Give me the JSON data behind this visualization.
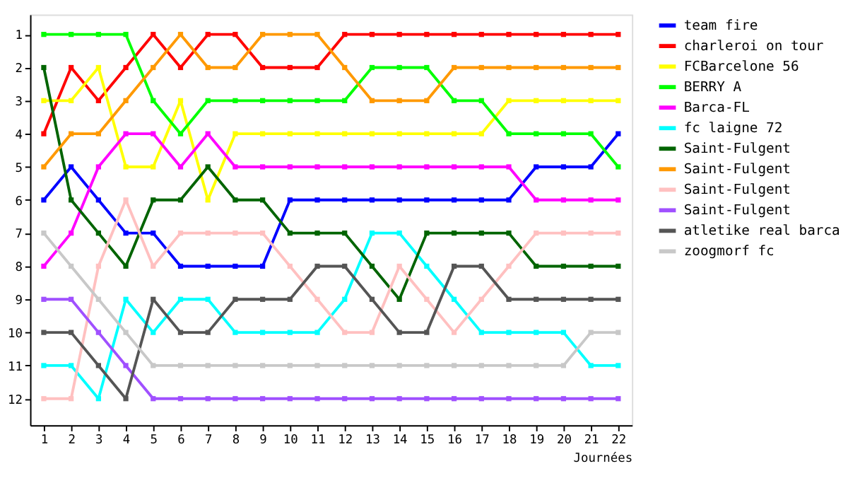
{
  "chart_data": {
    "type": "line",
    "xlabel": "Journées",
    "x": [
      1,
      2,
      3,
      4,
      5,
      6,
      7,
      8,
      9,
      10,
      11,
      12,
      13,
      14,
      15,
      16,
      17,
      18,
      19,
      20,
      21,
      22
    ],
    "xlim": [
      0.5,
      22.5
    ],
    "xticks": [
      1,
      2,
      3,
      4,
      5,
      6,
      7,
      8,
      9,
      10,
      11,
      12,
      13,
      14,
      15,
      16,
      17,
      18,
      19,
      20,
      21,
      22
    ],
    "ylim": [
      12.8,
      0.4
    ],
    "yticks": [
      1,
      2,
      3,
      4,
      5,
      6,
      7,
      8,
      9,
      10,
      11,
      12
    ],
    "grid": false,
    "legend": "right",
    "marker": "square",
    "line_style": "solid",
    "series": [
      {
        "name": "team fire",
        "color": "#0000ff",
        "values": [
          6,
          5,
          6,
          7,
          7,
          8,
          8,
          8,
          8,
          6,
          6,
          6,
          6,
          6,
          6,
          6,
          6,
          6,
          5,
          5,
          5,
          4
        ]
      },
      {
        "name": "charleroi on tour",
        "color": "#ff0000",
        "values": [
          4,
          2,
          3,
          2,
          1,
          2,
          1,
          1,
          2,
          2,
          2,
          1,
          1,
          1,
          1,
          1,
          1,
          1,
          1,
          1,
          1,
          1
        ]
      },
      {
        "name": "FCBarcelone 56",
        "color": "#ffff00",
        "values": [
          3,
          3,
          2,
          5,
          5,
          3,
          6,
          4,
          4,
          4,
          4,
          4,
          4,
          4,
          4,
          4,
          4,
          3,
          3,
          3,
          3,
          3
        ]
      },
      {
        "name": "BERRY A",
        "color": "#00ff00",
        "values": [
          1,
          1,
          1,
          1,
          3,
          4,
          3,
          3,
          3,
          3,
          3,
          3,
          2,
          2,
          2,
          3,
          3,
          4,
          4,
          4,
          4,
          5
        ]
      },
      {
        "name": "Barca-FL",
        "color": "#ff00ff",
        "values": [
          8,
          7,
          5,
          4,
          4,
          5,
          4,
          5,
          5,
          5,
          5,
          5,
          5,
          5,
          5,
          5,
          5,
          5,
          6,
          6,
          6,
          6
        ]
      },
      {
        "name": "fc laigne 72",
        "color": "#00ffff",
        "values": [
          11,
          11,
          12,
          9,
          10,
          9,
          9,
          10,
          10,
          10,
          10,
          9,
          7,
          7,
          8,
          9,
          10,
          10,
          10,
          10,
          11,
          11
        ]
      },
      {
        "name": "Saint-Fulgent",
        "color": "#006400",
        "values": [
          2,
          6,
          7,
          8,
          6,
          6,
          5,
          6,
          6,
          7,
          7,
          7,
          8,
          9,
          7,
          7,
          7,
          7,
          8,
          8,
          8,
          8
        ]
      },
      {
        "name": "Saint-Fulgent",
        "color": "#ff9900",
        "values": [
          5,
          4,
          4,
          3,
          2,
          1,
          2,
          2,
          1,
          1,
          1,
          2,
          3,
          3,
          3,
          2,
          2,
          2,
          2,
          2,
          2,
          2
        ]
      },
      {
        "name": "Saint-Fulgent",
        "color": "#ffc0c0",
        "values": [
          12,
          12,
          8,
          6,
          8,
          7,
          7,
          7,
          7,
          8,
          9,
          10,
          10,
          8,
          9,
          10,
          9,
          8,
          7,
          7,
          7,
          7
        ]
      },
      {
        "name": "Saint-Fulgent",
        "color": "#a050ff",
        "values": [
          9,
          9,
          10,
          11,
          12,
          12,
          12,
          12,
          12,
          12,
          12,
          12,
          12,
          12,
          12,
          12,
          12,
          12,
          12,
          12,
          12,
          12
        ]
      },
      {
        "name": "atletike real barca",
        "color": "#555555",
        "values": [
          10,
          10,
          11,
          12,
          9,
          10,
          10,
          9,
          9,
          9,
          8,
          8,
          9,
          10,
          10,
          8,
          8,
          9,
          9,
          9,
          9,
          9
        ]
      },
      {
        "name": "zoogmorf fc",
        "color": "#c8c8c8",
        "values": [
          7,
          8,
          9,
          10,
          11,
          11,
          11,
          11,
          11,
          11,
          11,
          11,
          11,
          11,
          11,
          11,
          11,
          11,
          11,
          11,
          10,
          10
        ]
      }
    ]
  }
}
